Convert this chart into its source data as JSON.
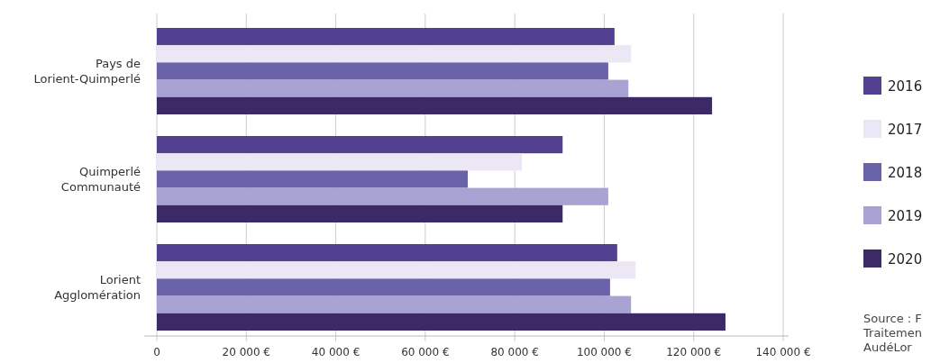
{
  "chart_data": {
    "type": "bar",
    "orientation": "horizontal",
    "categories": [
      "Pays de Lorient-Quimperlé",
      "Quimperlé Communauté",
      "Lorient Agglomération"
    ],
    "series": [
      {
        "name": "2016",
        "color": "#524191",
        "values": [
          102300,
          90700,
          102900
        ]
      },
      {
        "name": "2017",
        "color": "#ebe7f5",
        "values": [
          106000,
          81600,
          107000
        ]
      },
      {
        "name": "2018",
        "color": "#6b63a9",
        "values": [
          100900,
          69500,
          101300
        ]
      },
      {
        "name": "2019",
        "color": "#a8a3d2",
        "values": [
          105400,
          100900,
          106000
        ]
      },
      {
        "name": "2020",
        "color": "#3b2a66",
        "values": [
          124100,
          90700,
          127100
        ]
      }
    ],
    "xlim": [
      0,
      140000
    ],
    "xticks": [
      0,
      {
        "value": 20000,
        "label": "20 000 €"
      },
      {
        "value": 40000,
        "label": "40 000 €"
      },
      {
        "value": 60000,
        "label": "60 000 €"
      },
      {
        "value": 80000,
        "label": "80 000 €"
      },
      {
        "value": 100000,
        "label": "100 000 €"
      },
      {
        "value": 120000,
        "label": "120 000 €"
      },
      {
        "value": 140000,
        "label": "140 000 €"
      }
    ],
    "grid": "x",
    "legend": "right",
    "annotations": [
      "Source : F",
      "Traitemen",
      "AudéLor"
    ]
  }
}
